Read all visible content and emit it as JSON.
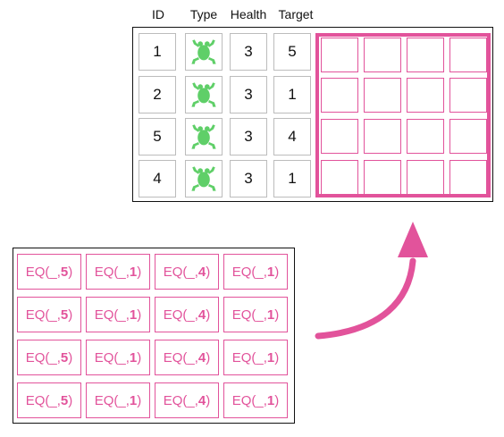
{
  "headers": [
    "ID",
    "Type",
    "Health",
    "Target"
  ],
  "rows": [
    {
      "id": "1",
      "type_icon": "frog-icon",
      "health": "3",
      "target": "5"
    },
    {
      "id": "2",
      "type_icon": "frog-icon",
      "health": "3",
      "target": "1"
    },
    {
      "id": "5",
      "type_icon": "frog-icon",
      "health": "3",
      "target": "4"
    },
    {
      "id": "4",
      "type_icon": "frog-icon",
      "health": "3",
      "target": "1"
    }
  ],
  "constraints": {
    "prefix": "EQ(_,",
    "suffix": ")",
    "columns": [
      "5",
      "1",
      "4",
      "1"
    ],
    "row_count": 4
  },
  "colors": {
    "accent": "#e2539b",
    "frog": "#5fcf68",
    "cell_border": "#bcbcbc",
    "frame": "#111111"
  }
}
